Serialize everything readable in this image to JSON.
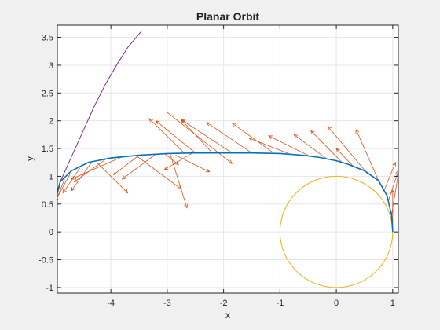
{
  "chart_data": {
    "type": "line",
    "title": "Planar Orbit",
    "xlabel": "x",
    "ylabel": "y",
    "xlim": [
      -4.95,
      1.1
    ],
    "ylim": [
      -1.1,
      3.72
    ],
    "grid": true,
    "xticks": [
      -4,
      -3,
      -2,
      -1,
      0,
      1
    ],
    "xtick_labels": [
      "-4",
      "-3",
      "-2",
      "-1",
      "0",
      "1"
    ],
    "yticks": [
      -1,
      -0.5,
      0,
      0.5,
      1,
      1.5,
      2,
      2.5,
      3,
      3.5
    ],
    "ytick_labels": [
      "-1",
      "-0.5",
      "0",
      "0.5",
      "1",
      "1.5",
      "2",
      "2.5",
      "3",
      "3.5"
    ],
    "colors": {
      "figure_bg": "#f0f0f0",
      "axes_bg": "#ffffff",
      "grid": "#e6e6e6",
      "axis": "#262626",
      "orbit": "#0072bd",
      "arrows": "#d95319",
      "circle": "#edb120",
      "curve": "#7e2f8e"
    },
    "series": [
      {
        "kind": "orbit",
        "x": [
          1.0,
          0.98,
          0.9,
          0.75,
          0.5,
          0.2,
          0.0,
          -0.3,
          -0.6,
          -1.0,
          -1.5,
          -2.0,
          -2.5,
          -3.0,
          -3.5,
          -4.0,
          -4.4,
          -4.7,
          -4.9,
          -4.95
        ],
        "y": [
          0.0,
          0.3,
          0.65,
          0.92,
          1.1,
          1.22,
          1.28,
          1.34,
          1.38,
          1.41,
          1.42,
          1.42,
          1.42,
          1.41,
          1.38,
          1.33,
          1.25,
          1.1,
          0.9,
          0.72
        ]
      },
      {
        "kind": "unit-circle",
        "center": [
          0,
          0
        ],
        "radius": 1.0
      },
      {
        "kind": "curve",
        "x": [
          -4.9,
          -4.7,
          -4.5,
          -4.3,
          -4.1,
          -3.9,
          -3.7,
          -3.45
        ],
        "y": [
          0.9,
          1.35,
          1.8,
          2.25,
          2.65,
          3.0,
          3.32,
          3.62
        ]
      }
    ],
    "arrows": [
      {
        "x": 1.0,
        "y": 0.0,
        "u": 0.0,
        "v": 0.75
      },
      {
        "x": 0.98,
        "y": 0.3,
        "u": 0.12,
        "v": 0.75
      },
      {
        "x": 0.92,
        "y": 0.55,
        "u": 0.18,
        "v": 0.55
      },
      {
        "x": 0.85,
        "y": 0.75,
        "u": 0.2,
        "v": 0.5
      },
      {
        "x": 0.75,
        "y": 0.92,
        "u": -0.4,
        "v": 0.92
      },
      {
        "x": 0.55,
        "y": 1.05,
        "u": -0.7,
        "v": 0.85
      },
      {
        "x": 0.3,
        "y": 1.18,
        "u": -0.3,
        "v": 0.32
      },
      {
        "x": 0.1,
        "y": 1.25,
        "u": -0.55,
        "v": 0.57
      },
      {
        "x": -0.15,
        "y": 1.3,
        "u": -0.6,
        "v": 0.45
      },
      {
        "x": -0.45,
        "y": 1.35,
        "u": -0.75,
        "v": 0.38
      },
      {
        "x": -0.8,
        "y": 1.39,
        "u": -0.75,
        "v": 0.3
      },
      {
        "x": -1.1,
        "y": 1.41,
        "u": -0.75,
        "v": 0.55
      },
      {
        "x": -1.5,
        "y": 1.42,
        "u": -0.8,
        "v": 0.55
      },
      {
        "x": -1.85,
        "y": 1.42,
        "u": -0.9,
        "v": 0.6
      },
      {
        "x": -2.2,
        "y": 1.42,
        "u": -0.55,
        "v": 0.6
      },
      {
        "x": -2.5,
        "y": 1.42,
        "u": -0.7,
        "v": 0.58
      },
      {
        "x": -2.7,
        "y": 1.42,
        "u": -0.62,
        "v": 0.62
      },
      {
        "x": -3.0,
        "y": 2.15,
        "u": 1.15,
        "v": -0.92
      },
      {
        "x": -2.95,
        "y": 1.41,
        "u": 0.3,
        "v": -0.98
      },
      {
        "x": -2.55,
        "y": 1.42,
        "u": -0.5,
        "v": -0.3
      },
      {
        "x": -3.05,
        "y": 1.41,
        "u": 0.25,
        "v": -0.2
      },
      {
        "x": -3.2,
        "y": 1.4,
        "u": -0.6,
        "v": -0.45
      },
      {
        "x": -3.5,
        "y": 1.38,
        "u": -0.45,
        "v": -0.35
      },
      {
        "x": -3.8,
        "y": 1.35,
        "u": -0.9,
        "v": -0.4
      },
      {
        "x": -4.1,
        "y": 1.3,
        "u": -0.55,
        "v": -0.4
      },
      {
        "x": -4.35,
        "y": 1.24,
        "u": -0.35,
        "v": -0.5
      },
      {
        "x": -4.55,
        "y": 1.15,
        "u": -0.3,
        "v": -0.45
      },
      {
        "x": -4.72,
        "y": 1.05,
        "u": -0.27,
        "v": -0.5
      },
      {
        "x": -4.82,
        "y": 0.95,
        "u": -0.2,
        "v": -0.5
      },
      {
        "x": -4.9,
        "y": 0.85,
        "u": -0.12,
        "v": -0.42
      },
      {
        "x": -4.95,
        "y": 0.72,
        "u": -0.18,
        "v": -0.35
      },
      {
        "x": -2.85,
        "y": 1.38,
        "u": 0.6,
        "v": -0.3
      },
      {
        "x": -3.55,
        "y": 1.37,
        "u": 0.8,
        "v": -0.6
      },
      {
        "x": -4.25,
        "y": 1.25,
        "u": 0.55,
        "v": -0.55
      }
    ]
  }
}
